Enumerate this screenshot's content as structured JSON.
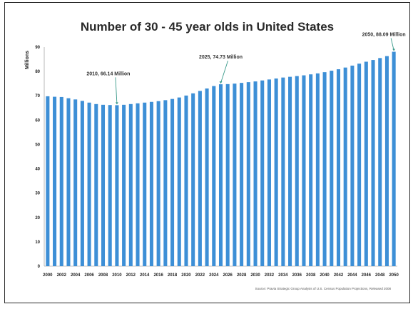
{
  "chart_data": {
    "type": "bar",
    "title": "Number of 30 - 45 year olds in United States",
    "ylabel": "Millions",
    "xlabel": "",
    "ylim": [
      0,
      90
    ],
    "yticks": [
      0,
      10,
      20,
      30,
      40,
      50,
      60,
      70,
      80,
      90
    ],
    "bar_color": "#3d8fd6",
    "categories": [
      "2000",
      "2001",
      "2002",
      "2003",
      "2004",
      "2005",
      "2006",
      "2007",
      "2008",
      "2009",
      "2010",
      "2011",
      "2012",
      "2013",
      "2014",
      "2015",
      "2016",
      "2017",
      "2018",
      "2019",
      "2020",
      "2021",
      "2022",
      "2023",
      "2024",
      "2025",
      "2026",
      "2027",
      "2028",
      "2029",
      "2030",
      "2031",
      "2032",
      "2033",
      "2034",
      "2035",
      "2036",
      "2037",
      "2038",
      "2039",
      "2040",
      "2041",
      "2042",
      "2043",
      "2044",
      "2045",
      "2046",
      "2047",
      "2048",
      "2049",
      "2050"
    ],
    "xtick_labels": [
      "2000",
      "2002",
      "2004",
      "2006",
      "2008",
      "2010",
      "2012",
      "2014",
      "2016",
      "2018",
      "2020",
      "2022",
      "2024",
      "2026",
      "2028",
      "2030",
      "2032",
      "2034",
      "2036",
      "2038",
      "2040",
      "2042",
      "2044",
      "2046",
      "2048",
      "2050"
    ],
    "values": [
      69.8,
      69.6,
      69.5,
      69.0,
      68.5,
      67.9,
      67.2,
      66.6,
      66.3,
      66.2,
      66.14,
      66.3,
      66.6,
      66.9,
      67.2,
      67.5,
      67.8,
      68.2,
      68.7,
      69.3,
      70.1,
      71.0,
      72.0,
      73.0,
      74.0,
      74.73,
      74.8,
      75.0,
      75.3,
      75.6,
      75.9,
      76.3,
      76.7,
      77.1,
      77.5,
      77.8,
      78.1,
      78.4,
      78.8,
      79.2,
      79.7,
      80.3,
      80.9,
      81.6,
      82.4,
      83.2,
      84.0,
      84.7,
      85.5,
      86.3,
      88.09
    ],
    "annotations": [
      {
        "text": "2010, 66.14 Million",
        "category": "2010"
      },
      {
        "text": "2025, 74.73 Million",
        "category": "2025"
      },
      {
        "text": "2050, 88.09 Million",
        "category": "2050"
      }
    ],
    "source": "Source: Pravia Strategic Group Analysis of U.S. Census Population Projections, Released 2008"
  }
}
